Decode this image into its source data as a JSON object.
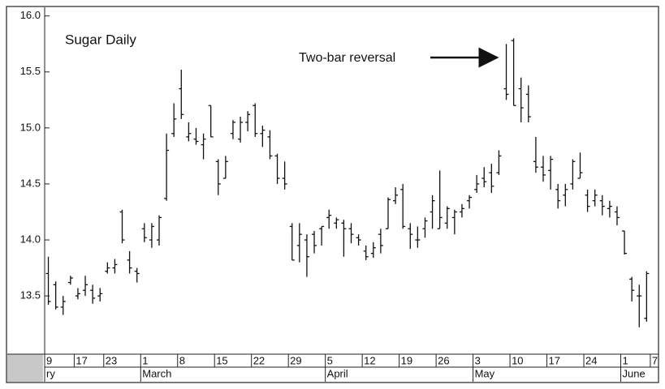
{
  "chart_data": {
    "type": "ohlc",
    "title": "Sugar Daily",
    "annotation": "Two-bar reversal",
    "categories": [
      "9",
      null,
      null,
      null,
      "17",
      null,
      null,
      null,
      "23",
      null,
      null,
      null,
      null,
      "1",
      null,
      null,
      null,
      null,
      "8",
      null,
      null,
      null,
      null,
      "15",
      null,
      null,
      null,
      null,
      "22",
      null,
      null,
      null,
      null,
      "29",
      null,
      null,
      null,
      null,
      "5",
      null,
      null,
      null,
      null,
      "12",
      null,
      null,
      null,
      null,
      "19",
      null,
      null,
      null,
      null,
      "26",
      null,
      null,
      null,
      null,
      "3",
      null,
      null,
      null,
      null,
      "10",
      null,
      null,
      null,
      null,
      "17",
      null,
      null,
      null,
      null,
      "24",
      null,
      null,
      null,
      null,
      "1",
      null,
      null,
      null,
      "7"
    ],
    "months": [
      "ry",
      null,
      null,
      null,
      null,
      null,
      null,
      null,
      null,
      null,
      null,
      null,
      null,
      "March",
      null,
      null,
      null,
      null,
      null,
      null,
      null,
      null,
      null,
      null,
      null,
      null,
      null,
      null,
      null,
      null,
      null,
      null,
      null,
      null,
      null,
      null,
      null,
      null,
      "April",
      null,
      null,
      null,
      null,
      null,
      null,
      null,
      null,
      null,
      null,
      null,
      null,
      null,
      null,
      null,
      null,
      null,
      null,
      null,
      "May",
      null,
      null,
      null,
      null,
      null,
      null,
      null,
      null,
      null,
      null,
      null,
      null,
      null,
      null,
      null,
      null,
      null,
      null,
      null,
      "June",
      null,
      null,
      null,
      null
    ],
    "open": [
      13.7,
      13.6,
      13.4,
      13.62,
      13.5,
      13.55,
      13.55,
      13.5,
      13.72,
      13.75,
      14.25,
      13.82,
      13.72,
      14.1,
      14.0,
      14.0,
      14.37,
      14.95,
      15.35,
      14.92,
      14.9,
      14.85,
      15.2,
      14.7,
      14.55,
      14.95,
      14.9,
      15.05,
      15.2,
      14.95,
      14.92,
      14.75,
      14.55,
      14.12,
      13.95,
      14.0,
      14.05,
      14.1,
      14.2,
      14.15,
      14.15,
      14.1,
      14.02,
      13.9,
      13.88,
      14.05,
      14.1,
      14.35,
      14.45,
      14.1,
      14.0,
      14.1,
      14.25,
      14.1,
      14.15,
      14.2,
      14.25,
      14.35,
      14.45,
      14.55,
      14.6,
      14.6,
      15.35,
      15.78,
      15.35,
      15.3,
      14.7,
      14.65,
      14.62,
      14.45,
      14.4,
      14.5,
      14.55,
      14.4,
      14.35,
      14.35,
      14.28,
      14.25,
      14.08,
      13.65,
      13.5,
      13.3,
      null
    ],
    "high": [
      13.85,
      13.63,
      13.5,
      13.68,
      13.57,
      13.68,
      13.6,
      13.57,
      13.8,
      13.83,
      14.27,
      13.9,
      13.75,
      14.15,
      14.15,
      14.22,
      14.95,
      15.22,
      15.52,
      15.05,
      15.0,
      14.95,
      15.2,
      14.72,
      14.75,
      15.07,
      15.1,
      15.15,
      15.22,
      15.02,
      14.98,
      14.77,
      14.7,
      14.15,
      14.15,
      14.05,
      14.08,
      14.12,
      14.27,
      14.2,
      14.18,
      14.15,
      14.05,
      13.95,
      13.98,
      14.1,
      14.38,
      14.47,
      14.5,
      14.15,
      14.12,
      14.2,
      14.4,
      14.62,
      14.3,
      14.27,
      14.32,
      14.4,
      14.58,
      14.65,
      14.68,
      14.8,
      15.75,
      15.8,
      15.45,
      15.38,
      14.92,
      14.75,
      14.75,
      14.5,
      14.5,
      14.72,
      14.78,
      14.45,
      14.45,
      14.4,
      14.35,
      14.3,
      14.08,
      13.67,
      13.6,
      13.72,
      null
    ],
    "low": [
      13.42,
      13.38,
      13.33,
      13.6,
      13.47,
      13.5,
      13.43,
      13.45,
      13.7,
      13.7,
      13.97,
      13.7,
      13.62,
      13.98,
      13.93,
      13.95,
      14.35,
      14.92,
      15.08,
      14.88,
      14.85,
      14.72,
      14.92,
      14.4,
      14.55,
      14.9,
      14.87,
      14.97,
      14.92,
      14.83,
      14.72,
      14.5,
      14.45,
      13.82,
      13.8,
      13.67,
      13.88,
      13.95,
      14.1,
      14.1,
      13.85,
      13.97,
      13.95,
      13.82,
      13.84,
      13.88,
      14.1,
      14.32,
      14.1,
      13.92,
      13.93,
      14.02,
      14.1,
      14.1,
      14.1,
      14.05,
      14.2,
      14.28,
      14.42,
      14.47,
      14.42,
      14.58,
      15.25,
      15.2,
      15.05,
      15.05,
      14.6,
      14.52,
      14.45,
      14.28,
      14.3,
      14.45,
      14.55,
      14.25,
      14.3,
      14.22,
      14.2,
      14.13,
      13.87,
      13.45,
      13.22,
      13.27,
      null
    ],
    "close": [
      13.45,
      13.4,
      13.45,
      13.66,
      13.52,
      13.6,
      13.48,
      13.52,
      13.75,
      13.78,
      14.0,
      13.75,
      13.7,
      14.02,
      14.12,
      14.2,
      14.8,
      15.08,
      15.12,
      14.95,
      14.88,
      14.9,
      14.92,
      14.5,
      14.7,
      15.05,
      15.05,
      15.12,
      14.95,
      14.98,
      14.75,
      14.55,
      14.5,
      13.82,
      14.05,
      13.85,
      13.95,
      14.12,
      14.22,
      14.18,
      14.1,
      14.05,
      14.0,
      13.85,
      13.93,
      13.95,
      14.36,
      14.4,
      14.12,
      14.05,
      14.0,
      14.17,
      14.35,
      14.2,
      14.28,
      14.25,
      14.28,
      14.38,
      14.5,
      14.52,
      14.48,
      14.75,
      15.3,
      15.2,
      15.18,
      15.1,
      14.65,
      14.58,
      14.72,
      14.35,
      14.45,
      14.7,
      14.6,
      14.3,
      14.4,
      14.3,
      14.3,
      14.2,
      13.88,
      13.55,
      13.5,
      13.7,
      null
    ],
    "color": "#111111",
    "ylim": [
      12.98,
      16.07
    ],
    "yticks": [
      13.5,
      {
        "value": 14,
        "label": "14.0"
      },
      14.5,
      {
        "value": 15,
        "label": "15.0"
      },
      15.5,
      {
        "value": 16,
        "label": "16.0"
      }
    ]
  }
}
